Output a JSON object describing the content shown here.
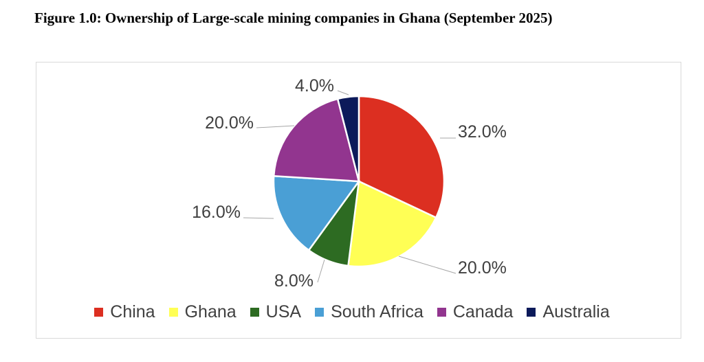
{
  "title": "Figure 1.0: Ownership of Large-scale mining companies in Ghana (September 2025)",
  "chart_data": {
    "type": "pie",
    "title": "Ownership of Large-scale mining companies in Ghana (September 2025)",
    "categories": [
      "China",
      "Ghana",
      "USA",
      "South Africa",
      "Canada",
      "Australia"
    ],
    "values": [
      32.0,
      20.0,
      8.0,
      16.0,
      20.0,
      4.0
    ],
    "labels": [
      "32.0%",
      "20.0%",
      "8.0%",
      "16.0%",
      "20.0%",
      "4.0%"
    ],
    "colors": [
      "#dc2f21",
      "#ffff55",
      "#2d6b22",
      "#4a9fd5",
      "#92358f",
      "#0c1a5a"
    ],
    "legend_position": "bottom",
    "start_angle": "12 o'clock, clockwise"
  }
}
